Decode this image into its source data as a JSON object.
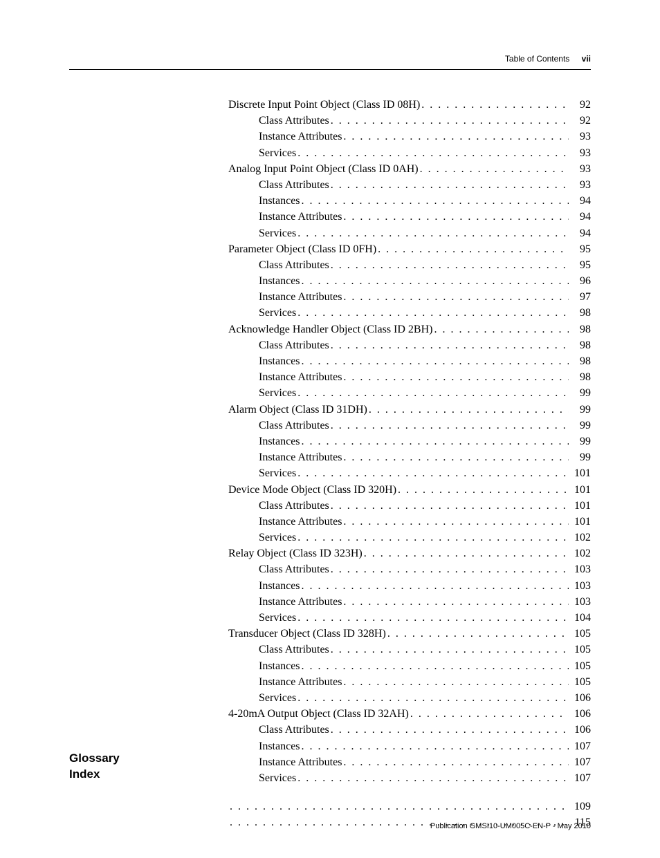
{
  "header": {
    "label": "Table of Contents",
    "page_marker": "vii"
  },
  "toc": [
    {
      "level": 0,
      "title": "Discrete Input Point Object (Class ID 08H)",
      "page": "92"
    },
    {
      "level": 1,
      "title": "Class Attributes",
      "page": "92"
    },
    {
      "level": 1,
      "title": "Instance Attributes",
      "page": "93"
    },
    {
      "level": 1,
      "title": "Services",
      "page": "93"
    },
    {
      "level": 0,
      "title": "Analog Input Point Object (Class ID 0AH)",
      "page": "93"
    },
    {
      "level": 1,
      "title": "Class Attributes",
      "page": "93"
    },
    {
      "level": 1,
      "title": "Instances",
      "page": "94"
    },
    {
      "level": 1,
      "title": "Instance Attributes",
      "page": "94"
    },
    {
      "level": 1,
      "title": "Services",
      "page": "94"
    },
    {
      "level": 0,
      "title": "Parameter Object (Class ID 0FH)",
      "page": "95"
    },
    {
      "level": 1,
      "title": "Class Attributes",
      "page": "95"
    },
    {
      "level": 1,
      "title": "Instances",
      "page": "96"
    },
    {
      "level": 1,
      "title": "Instance Attributes",
      "page": "97"
    },
    {
      "level": 1,
      "title": "Services",
      "page": "98"
    },
    {
      "level": 0,
      "title": "Acknowledge Handler Object (Class ID 2BH)",
      "page": "98"
    },
    {
      "level": 1,
      "title": "Class Attributes",
      "page": "98"
    },
    {
      "level": 1,
      "title": "Instances",
      "page": "98"
    },
    {
      "level": 1,
      "title": "Instance Attributes",
      "page": "98"
    },
    {
      "level": 1,
      "title": "Services",
      "page": "99"
    },
    {
      "level": 0,
      "title": "Alarm Object (Class ID 31DH)",
      "page": "99"
    },
    {
      "level": 1,
      "title": "Class Attributes",
      "page": "99"
    },
    {
      "level": 1,
      "title": "Instances",
      "page": "99"
    },
    {
      "level": 1,
      "title": "Instance Attributes",
      "page": "99"
    },
    {
      "level": 1,
      "title": "Services",
      "page": "101"
    },
    {
      "level": 0,
      "title": "Device Mode Object (Class ID 320H)",
      "page": "101"
    },
    {
      "level": 1,
      "title": "Class Attributes",
      "page": "101"
    },
    {
      "level": 1,
      "title": "Instance Attributes",
      "page": "101"
    },
    {
      "level": 1,
      "title": "Services",
      "page": "102"
    },
    {
      "level": 0,
      "title": "Relay Object (Class ID 323H)",
      "page": "102"
    },
    {
      "level": 1,
      "title": "Class Attributes",
      "page": "103"
    },
    {
      "level": 1,
      "title": "Instances",
      "page": "103"
    },
    {
      "level": 1,
      "title": "Instance Attributes",
      "page": "103"
    },
    {
      "level": 1,
      "title": "Services",
      "page": "104"
    },
    {
      "level": 0,
      "title": "Transducer Object (Class ID 328H)",
      "page": "105"
    },
    {
      "level": 1,
      "title": "Class Attributes",
      "page": "105"
    },
    {
      "level": 1,
      "title": "Instances",
      "page": "105"
    },
    {
      "level": 1,
      "title": "Instance Attributes",
      "page": "105"
    },
    {
      "level": 1,
      "title": "Services",
      "page": "106"
    },
    {
      "level": 0,
      "title": "4-20mA Output Object (Class ID 32AH)",
      "page": "106"
    },
    {
      "level": 1,
      "title": "Class Attributes",
      "page": "106"
    },
    {
      "level": 1,
      "title": "Instances",
      "page": "107"
    },
    {
      "level": 1,
      "title": "Instance Attributes",
      "page": "107"
    },
    {
      "level": 1,
      "title": "Services",
      "page": "107"
    }
  ],
  "end_sections": [
    {
      "label": "Glossary",
      "page": "109"
    },
    {
      "label": "Index",
      "page": "115"
    }
  ],
  "footer": {
    "publication": "Publication GMSI10-UM005C-EN-P - May 2010"
  }
}
